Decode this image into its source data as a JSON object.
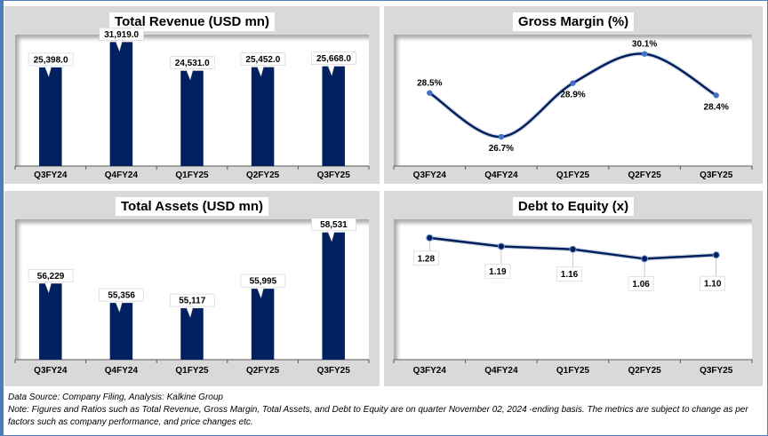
{
  "colors": {
    "bar": "#002060",
    "line": "#002060",
    "marker_gm": "#4472c4",
    "panel_bg": "#d9d9d9",
    "frame": "#4f81bd"
  },
  "chart_data": [
    {
      "id": "revenue",
      "type": "bar",
      "title": "Total Revenue (USD mn)",
      "categories": [
        "Q3FY24",
        "Q4FY24",
        "Q1FY25",
        "Q2FY25",
        "Q3FY25"
      ],
      "values": [
        25398.0,
        31919.0,
        24531.0,
        25452.0,
        25668.0
      ],
      "labels": [
        "25,398.0",
        "31,919.0",
        "24,531.0",
        "25,452.0",
        "25,668.0"
      ],
      "ylim": [
        0,
        32000
      ],
      "grid": false,
      "legend": "none"
    },
    {
      "id": "gross_margin",
      "type": "line",
      "title": "Gross Margin (%)",
      "categories": [
        "Q3FY24",
        "Q4FY24",
        "Q1FY25",
        "Q2FY25",
        "Q3FY25"
      ],
      "values": [
        28.5,
        26.7,
        28.9,
        30.1,
        28.4
      ],
      "labels": [
        "28.5%",
        "26.7%",
        "28.9%",
        "30.1%",
        "28.4%"
      ],
      "ylim": [
        25.5,
        30.6
      ],
      "smooth": true,
      "grid": false,
      "legend": "none"
    },
    {
      "id": "assets",
      "type": "bar",
      "title": "Total Assets (USD mn)",
      "categories": [
        "Q3FY24",
        "Q4FY24",
        "Q1FY25",
        "Q2FY25",
        "Q3FY25"
      ],
      "values": [
        56229,
        55356,
        55117,
        55995,
        58531
      ],
      "labels": [
        "56,229",
        "55,356",
        "55,117",
        "55,995",
        "58,531"
      ],
      "ylim": [
        52800,
        58800
      ],
      "grid": false,
      "legend": "none"
    },
    {
      "id": "debt_equity",
      "type": "line",
      "title": "Debt to Equity (x)",
      "categories": [
        "Q3FY24",
        "Q4FY24",
        "Q1FY25",
        "Q2FY25",
        "Q3FY25"
      ],
      "values": [
        1.28,
        1.19,
        1.16,
        1.06,
        1.1
      ],
      "labels": [
        "1.28",
        "1.19",
        "1.16",
        "1.06",
        "1.10"
      ],
      "ylim": [
        0.0,
        1.4
      ],
      "smooth": false,
      "grid": false,
      "legend": "none"
    }
  ],
  "footer": {
    "source": "Data Source: Company Filing, Analysis: Kalkine Group",
    "note": "Note: Figures and Ratios such as Total Revenue, Gross Margin, Total Assets, and Debt to Equity are on quarter November 02, 2024 -ending basis. The metrics are subject to change as per factors such as company performance, and price changes etc."
  }
}
